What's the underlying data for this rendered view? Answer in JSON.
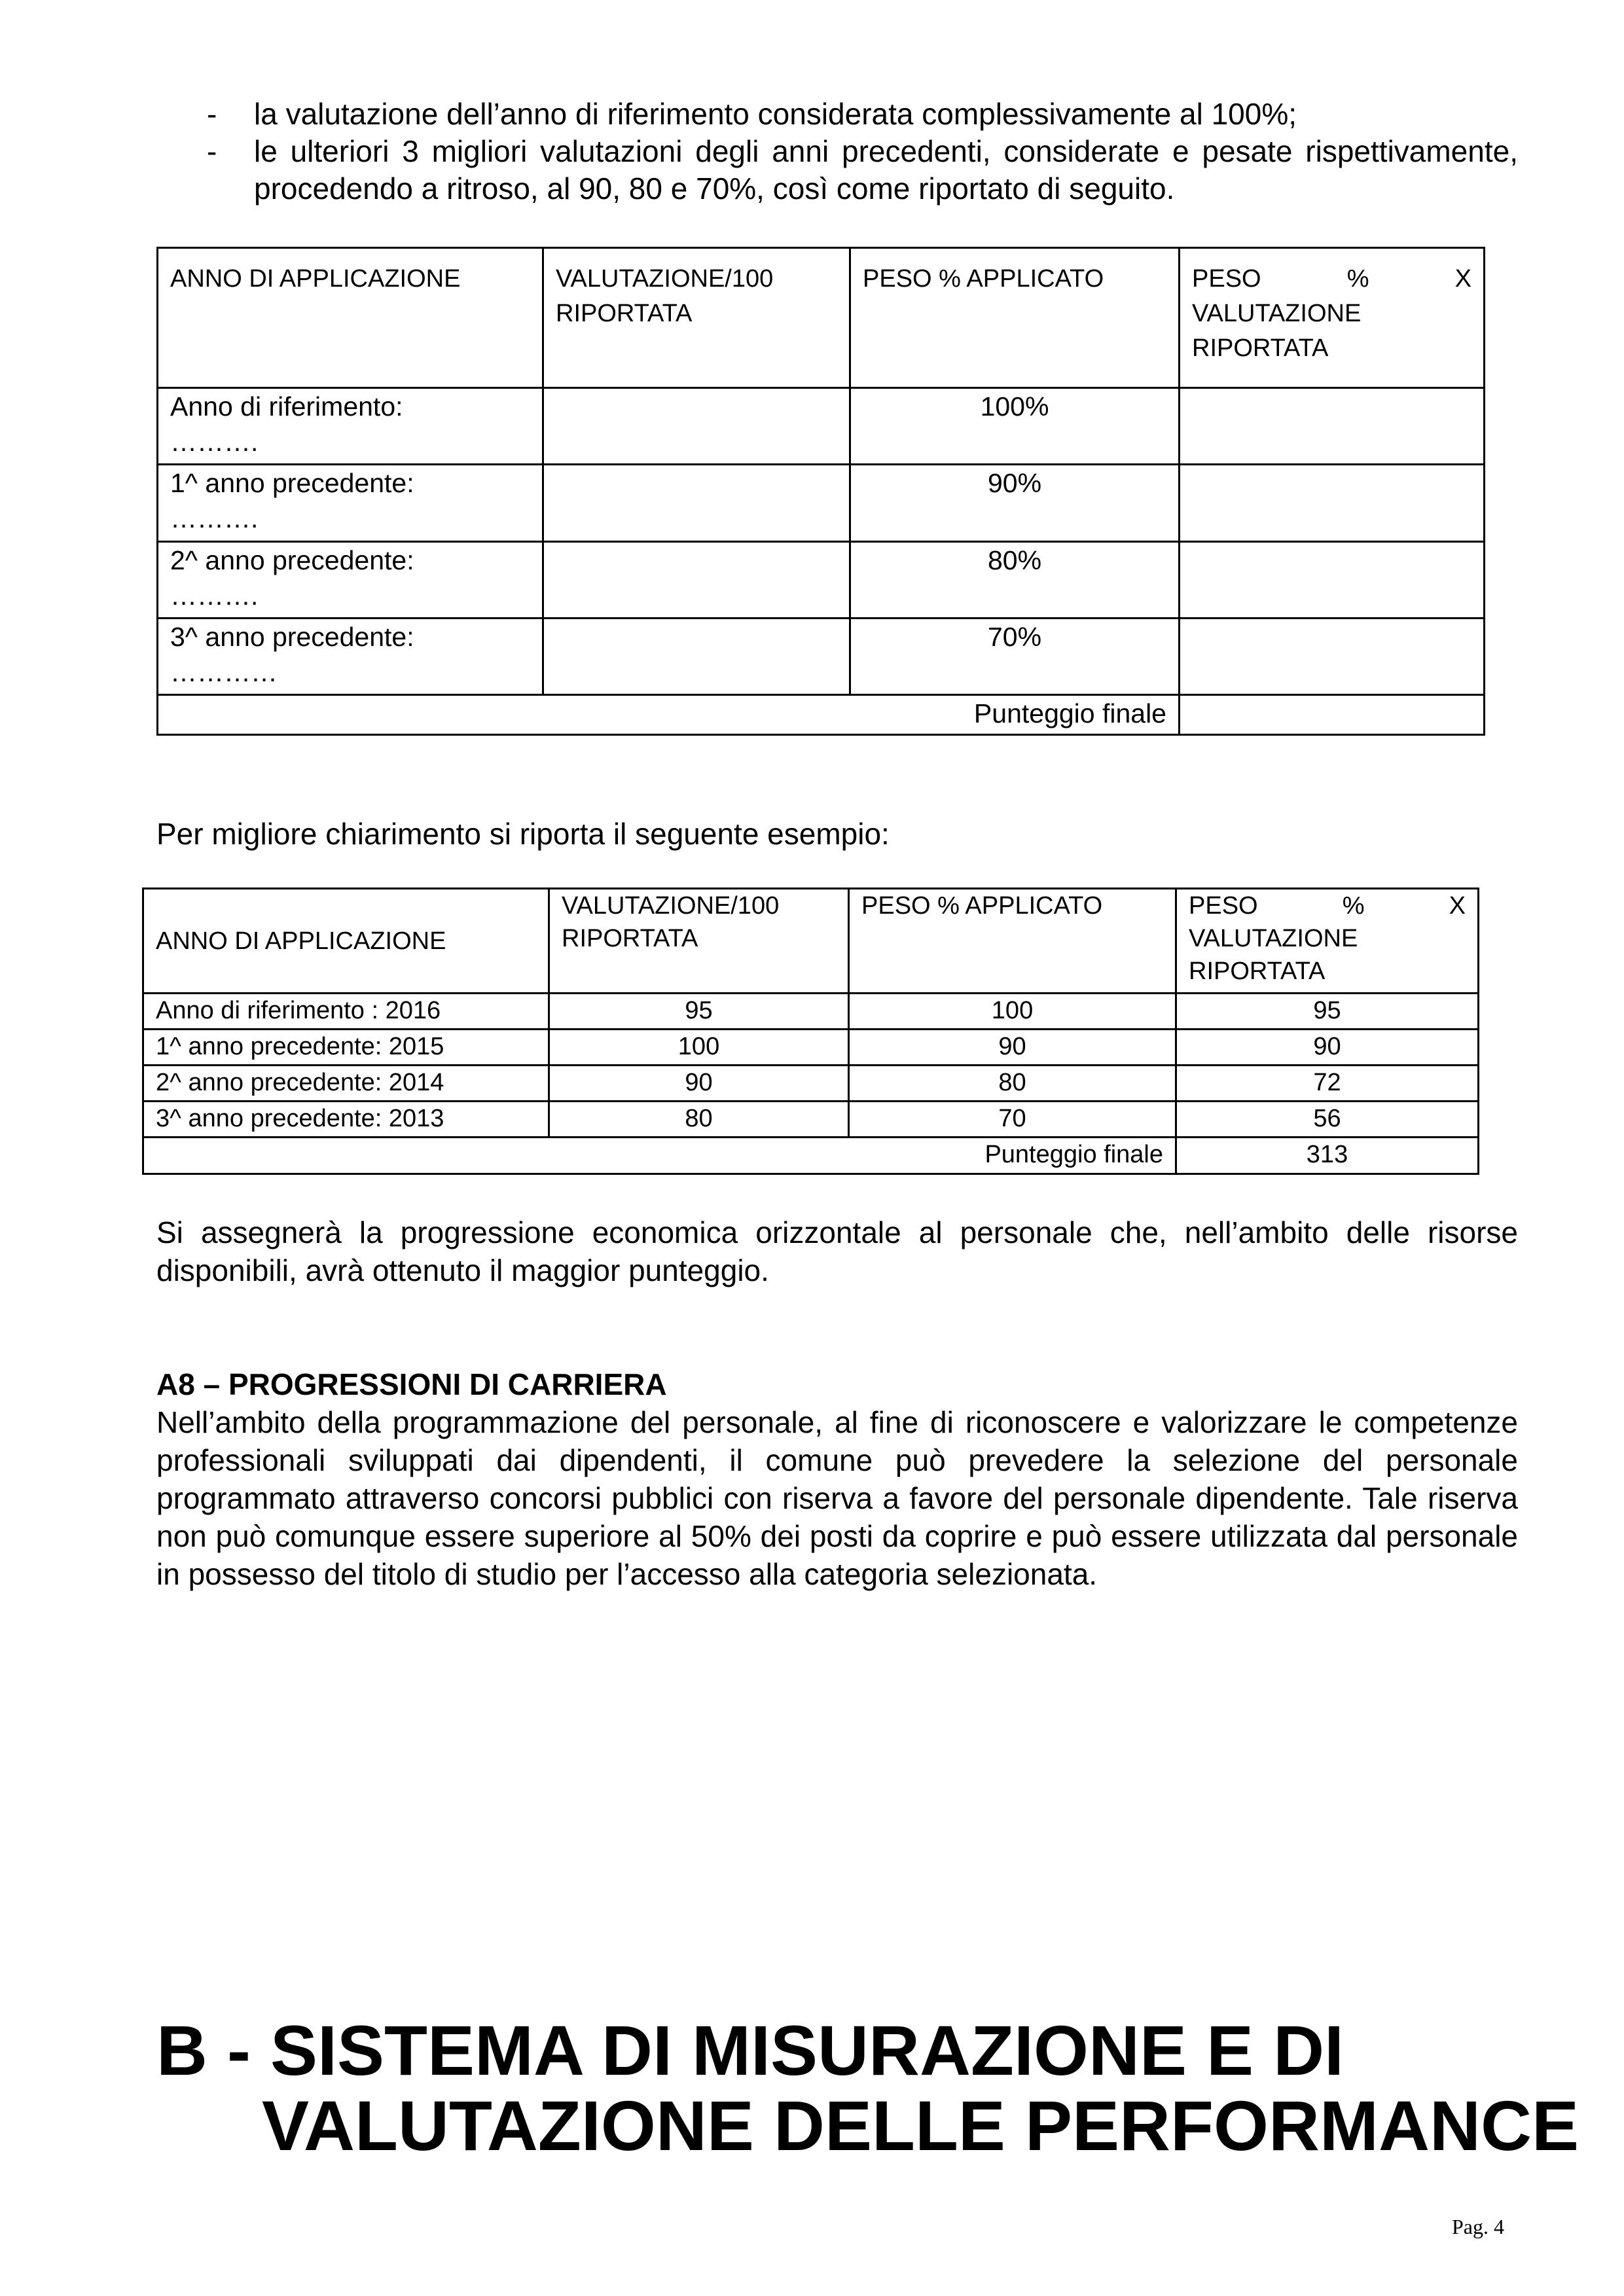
{
  "bullets": [
    "la valutazione dell’anno di riferimento considerata complessivamente al 100%;",
    "le ulteriori 3 migliori valutazioni degli anni precedenti, considerate e pesate rispettivamente, procedendo a ritroso, al 90, 80 e 70%, così come riportato di seguito."
  ],
  "bullet_dash": "-",
  "table1": {
    "headers": [
      "ANNO DI APPLICAZIONE",
      "VALUTAZIONE/100 RIPORTATA",
      "PESO % APPLICATO"
    ],
    "header4": {
      "w1": "PESO",
      "w2": "%",
      "w3": "X",
      "rest": "VALUTAZIONE RIPORTATA"
    },
    "rows": [
      {
        "label": "Anno di riferimento:",
        "dots": "……….",
        "peso": "100%"
      },
      {
        "label": "1^ anno precedente:",
        "dots": "……….",
        "peso": "90%"
      },
      {
        "label": "2^ anno precedente:",
        "dots": "……….",
        "peso": "80%"
      },
      {
        "label": "3^ anno precedente:",
        "dots": "…………",
        "peso": "70%"
      }
    ],
    "final_label": "Punteggio finale"
  },
  "example_intro": "Per migliore chiarimento si riporta il seguente esempio:",
  "table2": {
    "headers": [
      "ANNO DI APPLICAZIONE",
      "VALUTAZIONE/100 RIPORTATA",
      "PESO % APPLICATO"
    ],
    "header4": {
      "w1": "PESO",
      "w2": "%",
      "w3": "X",
      "rest": "VALUTAZIONE RIPORTATA"
    },
    "rows": [
      {
        "label": "Anno di riferimento : 2016",
        "val": "95",
        "peso": "100",
        "prod": "95"
      },
      {
        "label": "1^ anno precedente: 2015",
        "val": "100",
        "peso": "90",
        "prod": "90"
      },
      {
        "label": "2^ anno precedente: 2014",
        "val": "90",
        "peso": "80",
        "prod": "72"
      },
      {
        "label": "3^ anno precedente: 2013",
        "val": "80",
        "peso": "70",
        "prod": "56"
      }
    ],
    "final_label": "Punteggio finale",
    "final_value": "313"
  },
  "assign_paragraph": "Si assegnerà la progressione economica orizzontale al personale che, nell’ambito delle risorse disponibili, avrà ottenuto il maggior punteggio.",
  "a8": {
    "heading": "A8 – PROGRESSIONI DI CARRIERA",
    "body": "Nell’ambito della programmazione del personale, al fine di riconoscere e valorizzare le competenze professionali sviluppati dai dipendenti, il comune può prevedere la selezione del personale programmato attraverso concorsi pubblici con riserva a favore del personale dipendente. Tale riserva non può comunque essere superiore al 50% dei posti da coprire e può essere utilizzata dal personale in possesso del titolo di studio per l’accesso alla categoria selezionata."
  },
  "section_b": {
    "line1": "B - SISTEMA DI MISURAZIONE E DI",
    "line2": "VALUTAZIONE DELLE PERFORMANCE"
  },
  "page_number": "Pag. 4"
}
